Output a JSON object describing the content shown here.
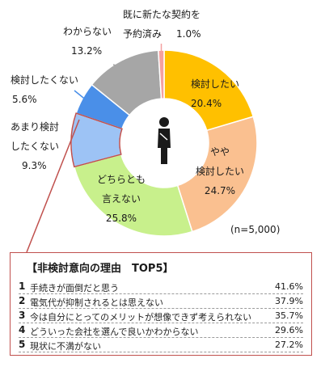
{
  "chart_data": {
    "type": "pie",
    "categories": [
      "検討したい",
      "やや検討したい",
      "どちらとも言えない",
      "あまり検討したくない",
      "検討したくない",
      "わからない",
      "既に新たな契約を予約済み"
    ],
    "values": [
      20.4,
      24.7,
      25.8,
      9.3,
      5.6,
      13.2,
      1.0
    ],
    "colors": [
      "#ffc000",
      "#fac090",
      "#c8f08c",
      "#9dc3f5",
      "#4a8fe8",
      "#a6a6a6",
      "#f4a0a0"
    ],
    "donut": true,
    "center_icon": "person-icon"
  },
  "labels": [
    {
      "line1": "検討したい",
      "line2": "",
      "pct": "20.4%"
    },
    {
      "line1": "やや",
      "line2": "検討したい",
      "pct": "24.7%"
    },
    {
      "line1": "どちらとも",
      "line2": "言えない",
      "pct": "25.8%"
    },
    {
      "line1": "あまり検討",
      "line2": "したくない",
      "pct": "9.3%"
    },
    {
      "line1": "検討したくない",
      "line2": "",
      "pct": "5.6%"
    },
    {
      "line1": "わからない",
      "line2": "",
      "pct": "13.2%"
    },
    {
      "line1": "既に新たな契約を",
      "line2": "予約済み",
      "pct": "1.0%"
    }
  ],
  "sample_note": "(n=5,000)",
  "top5": {
    "title": "【非検討意向の理由　TOP5】",
    "items": [
      {
        "rank": "1",
        "reason": "手続きが面倒だと思う",
        "pct": "41.6%"
      },
      {
        "rank": "2",
        "reason": "電気代が抑制されるとは思えない",
        "pct": "37.9%"
      },
      {
        "rank": "3",
        "reason": "今は自分にとってのメリットが想像できず考えられない",
        "pct": "35.7%"
      },
      {
        "rank": "4",
        "reason": "どういった会社を選んで良いかわからない",
        "pct": "29.6%"
      },
      {
        "rank": "5",
        "reason": "現状に不満がない",
        "pct": "27.2%"
      }
    ]
  }
}
